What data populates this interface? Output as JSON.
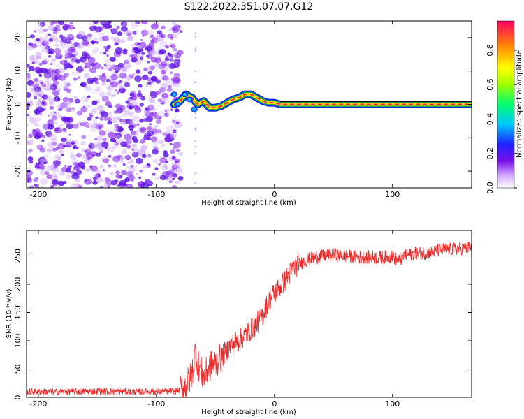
{
  "chart_data": [
    {
      "type": "heatmap",
      "title": "S122.2022.351.07.07.G12",
      "xlabel": "Height of straight line (km)",
      "ylabel": "Frequency (Hz)",
      "xlim": [
        -210,
        167
      ],
      "ylim": [
        -25,
        25
      ],
      "x_ticks": [
        -200,
        -100,
        0,
        100
      ],
      "y_ticks": [
        -20,
        -10,
        0,
        10,
        20
      ],
      "colorbar": {
        "label": "Normalized spectral amplitude",
        "range": [
          0.0,
          0.97
        ],
        "ticks": [
          0.0,
          0.2,
          0.4,
          0.6,
          0.8
        ]
      },
      "noise_region_x": [
        -210,
        -85
      ],
      "ridge_line": {
        "x": [
          -85,
          -80,
          -75,
          -70,
          -65,
          -60,
          -55,
          -50,
          -45,
          -40,
          -35,
          -30,
          -25,
          -20,
          -15,
          -10,
          -5,
          0,
          5,
          10,
          20,
          50,
          100,
          150,
          167
        ],
        "frequency_hz": [
          0,
          1,
          3,
          2,
          0,
          1,
          -1,
          -1,
          -0.5,
          0.5,
          1.5,
          2,
          3,
          3,
          2,
          1,
          0.5,
          0.5,
          0,
          0,
          0,
          0,
          0,
          0,
          0
        ],
        "amplitude": [
          0.3,
          0.3,
          0.4,
          0.5,
          0.6,
          0.65,
          0.65,
          0.7,
          0.75,
          0.8,
          0.85,
          0.85,
          0.9,
          0.9,
          0.9,
          0.9,
          0.9,
          0.9,
          0.9,
          0.95,
          0.95,
          0.9,
          0.9,
          0.9,
          0.9
        ]
      },
      "colors": {
        "noise": "#7b19e6",
        "ridge_core": "#ff2050",
        "ridge_mid": "#ffe000",
        "ridge_outer": "#1aa84c",
        "ridge_edge": "#1030e0"
      }
    },
    {
      "type": "line",
      "xlabel": "Height of straight line (km)",
      "ylabel": "SNR (10 * v/v)",
      "xlim": [
        -210,
        167
      ],
      "ylim": [
        0,
        295
      ],
      "x_ticks": [
        -200,
        -100,
        0,
        100
      ],
      "y_ticks": [
        0,
        50,
        100,
        150,
        200,
        250
      ],
      "series": [
        {
          "x": [
            -210,
            -190,
            -170,
            -150,
            -130,
            -110,
            -100,
            -90,
            -80,
            -75,
            -70,
            -67,
            -65,
            -60,
            -55,
            -50,
            -45,
            -40,
            -35,
            -30,
            -25,
            -20,
            -15,
            -10,
            -5,
            0,
            5,
            10,
            15,
            20,
            25,
            30,
            40,
            50,
            60,
            70,
            80,
            90,
            100,
            105,
            110,
            120,
            130,
            140,
            150,
            160,
            167
          ],
          "values": [
            10,
            10,
            10,
            11,
            10,
            10,
            10,
            10,
            12,
            20,
            40,
            80,
            60,
            35,
            55,
            60,
            70,
            85,
            95,
            100,
            110,
            120,
            130,
            145,
            170,
            185,
            195,
            210,
            225,
            235,
            240,
            245,
            250,
            252,
            250,
            248,
            248,
            247,
            250,
            240,
            250,
            255,
            255,
            260,
            262,
            263,
            265
          ],
          "color": "#ee2a2a"
        }
      ]
    }
  ]
}
